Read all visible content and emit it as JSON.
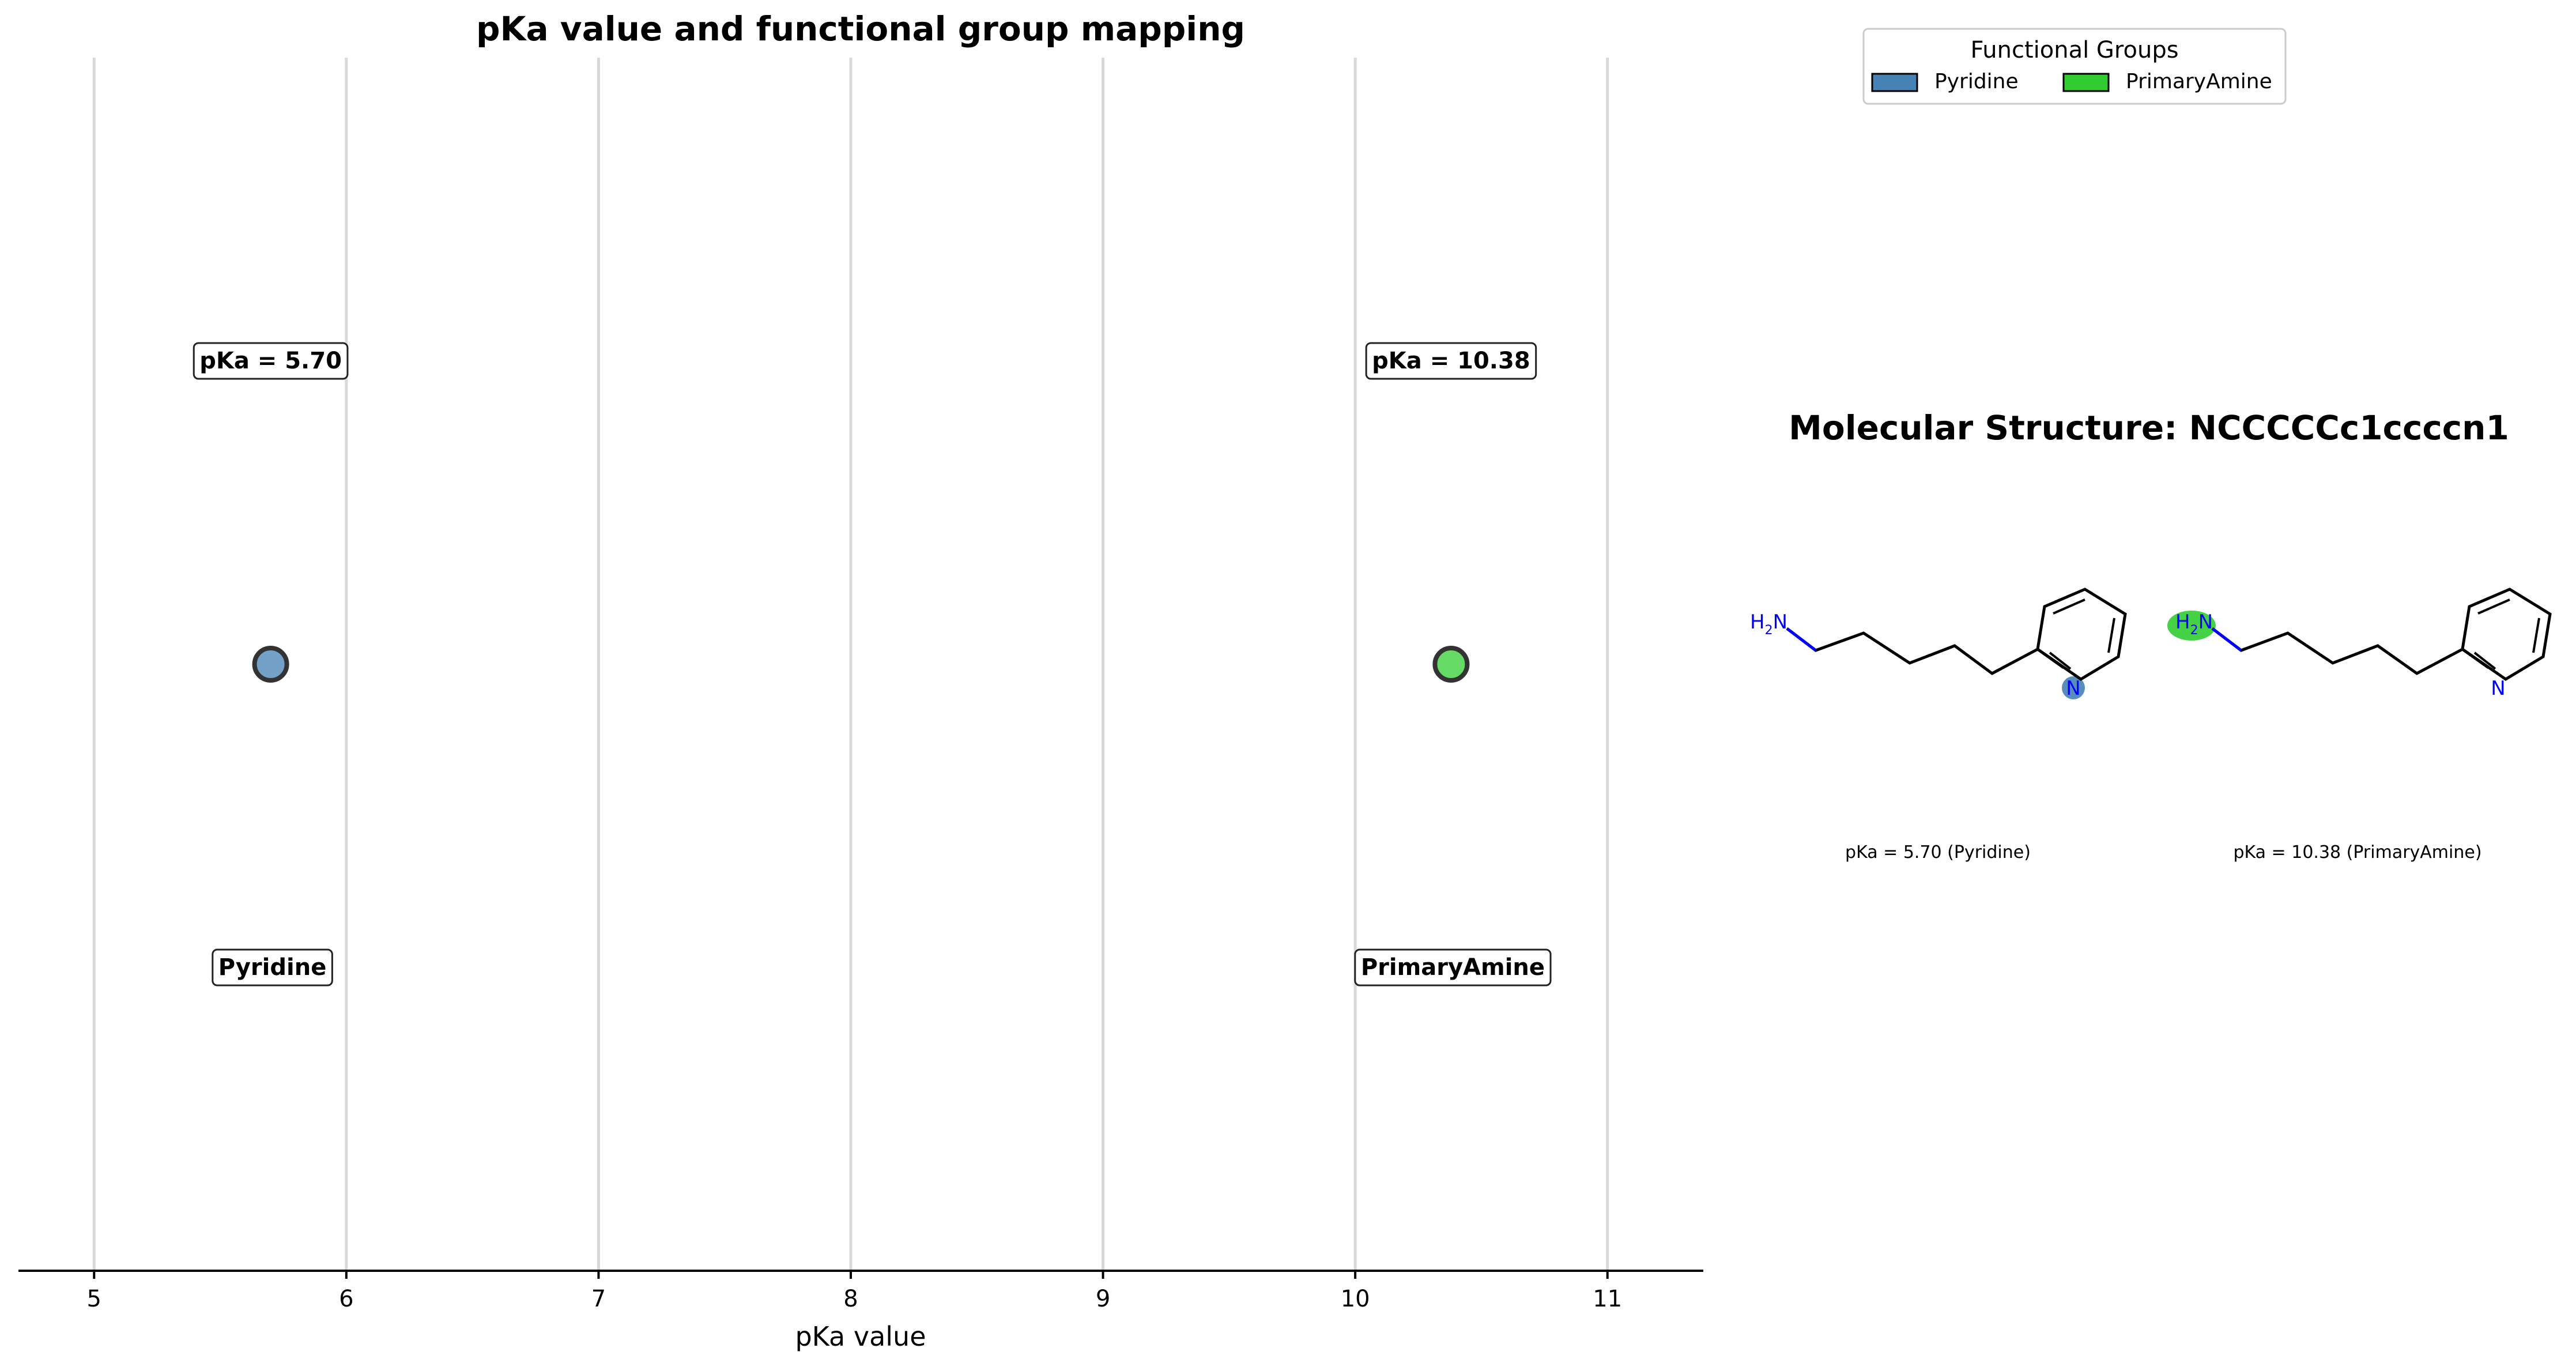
{
  "colors": {
    "pyridine": "#4682b4",
    "primary_amine": "#32cd32",
    "grid": "#d9d9d9",
    "axis": "#000000",
    "marker_edge": "#333333",
    "bond": "#000000",
    "nitrogen": "#0000ff"
  },
  "chart_data": [
    {
      "type": "scatter",
      "title": "pKa value and functional group mapping",
      "xlabel": "pKa value",
      "xlim": [
        4.7,
        11.38
      ],
      "xticks": [
        5,
        6,
        7,
        8,
        9,
        10,
        11
      ],
      "grid": "vertical",
      "series": [
        {
          "name": "Pyridine",
          "x": 5.7,
          "pka_label": "pKa = 5.70",
          "group_label": "Pyridine",
          "color_key": "pyridine"
        },
        {
          "name": "PrimaryAmine",
          "x": 10.38,
          "pka_label": "pKa = 10.38",
          "group_label": "PrimaryAmine",
          "color_key": "primary_amine"
        }
      ],
      "legend": {
        "title": "Functional Groups",
        "placement": "top-right",
        "entries": [
          "Pyridine",
          "PrimaryAmine"
        ]
      }
    }
  ],
  "structure_panel": {
    "title": "Molecular Structure: NCCCCCc1ccccn1",
    "atom_labels": {
      "amine": "H2N",
      "h": "H",
      "sub": "2",
      "n": "N",
      "ring_n": "N"
    },
    "captions": [
      "pKa = 5.70 (Pyridine)",
      "pKa = 10.38 (PrimaryAmine)"
    ]
  }
}
